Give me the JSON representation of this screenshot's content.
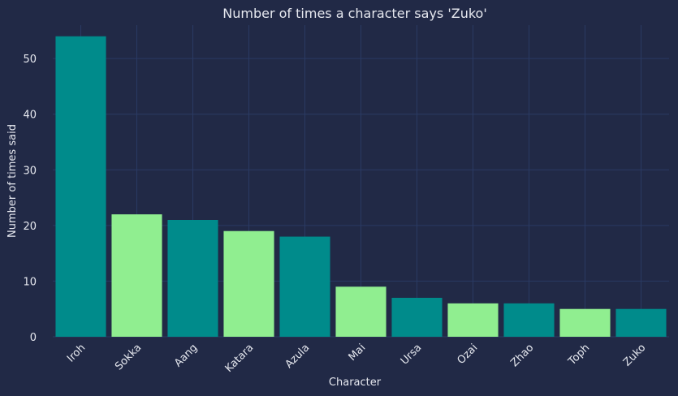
{
  "chart_data": {
    "type": "bar",
    "title": "Number of times a character says 'Zuko'",
    "xlabel": "Character",
    "ylabel": "Number of times said",
    "categories": [
      "Iroh",
      "Sokka",
      "Aang",
      "Katara",
      "Azula",
      "Mai",
      "Ursa",
      "Ozai",
      "Zhao",
      "Toph",
      "Zuko"
    ],
    "values": [
      54,
      22,
      21,
      19,
      18,
      9,
      7,
      6,
      6,
      5,
      5
    ],
    "ylim": [
      0,
      56
    ],
    "yticks": [
      "0",
      "10",
      "20",
      "30",
      "40",
      "50"
    ],
    "grid": true,
    "legend": "none",
    "colors": {
      "background": "#212946",
      "grid": "#2a3a63",
      "bar_primary": "#008b8b",
      "bar_secondary": "#90ee90",
      "text": "#e6e8ef"
    },
    "bar_color_pattern": [
      "#008b8b",
      "#90ee90"
    ]
  }
}
